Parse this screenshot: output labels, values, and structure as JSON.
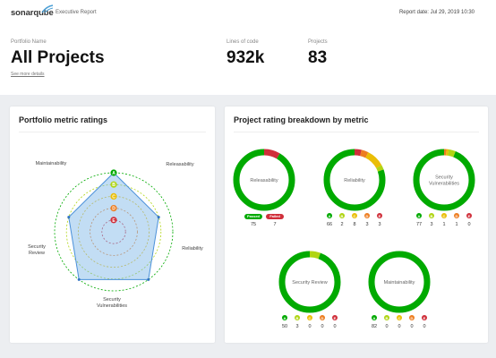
{
  "header": {
    "logo_text": "sonarqube",
    "title": "Executive Report",
    "report_date": "Report date: Jul 29, 2019 10:30"
  },
  "summary": {
    "portfolio_label": "Portfolio Name",
    "portfolio_value": "All Projects",
    "see_more": "See more details",
    "loc_label": "Lines of code",
    "loc_value": "932k",
    "projects_label": "Projects",
    "projects_value": "83"
  },
  "radar": {
    "title": "Portfolio metric ratings",
    "ring_letters": [
      "A",
      "B",
      "C",
      "D",
      "E"
    ],
    "ring_colors": [
      "#00aa00",
      "#b0d513",
      "#eabe06",
      "#ed7d20",
      "#d02f3a"
    ],
    "axes": [
      {
        "label": [
          "Maintainability"
        ],
        "rating": "A"
      },
      {
        "label": [
          "Releasability"
        ],
        "rating": "B"
      },
      {
        "label": [
          "Reliability"
        ],
        "rating": "A"
      },
      {
        "label": [
          "Security",
          "Vulnerabilities"
        ],
        "rating": "A"
      },
      {
        "label": [
          "Security",
          "Review"
        ],
        "rating": "B"
      }
    ]
  },
  "breakdown": {
    "title": "Project rating breakdown by metric",
    "donuts": [
      {
        "label": [
          "Releasability"
        ],
        "type": "passfail",
        "legend": [
          {
            "text": "Passed",
            "value": 75,
            "color": "#00aa00"
          },
          {
            "text": "Failed",
            "value": 7,
            "color": "#d02f3a"
          }
        ]
      },
      {
        "label": [
          "Reliability"
        ],
        "type": "grade",
        "legend": [
          {
            "text": "A",
            "value": 66,
            "color": "#00aa00"
          },
          {
            "text": "B",
            "value": 2,
            "color": "#b0d513"
          },
          {
            "text": "C",
            "value": 8,
            "color": "#eabe06"
          },
          {
            "text": "D",
            "value": 3,
            "color": "#ed7d20"
          },
          {
            "text": "E",
            "value": 3,
            "color": "#d02f3a"
          }
        ]
      },
      {
        "label": [
          "Security",
          "Vulnerabilities"
        ],
        "type": "grade",
        "legend": [
          {
            "text": "A",
            "value": 77,
            "color": "#00aa00"
          },
          {
            "text": "B",
            "value": 3,
            "color": "#b0d513"
          },
          {
            "text": "C",
            "value": 1,
            "color": "#eabe06"
          },
          {
            "text": "D",
            "value": 1,
            "color": "#ed7d20"
          },
          {
            "text": "E",
            "value": 0,
            "color": "#d02f3a"
          }
        ]
      },
      {
        "label": [
          "Security Review"
        ],
        "type": "grade",
        "legend": [
          {
            "text": "A",
            "value": 50,
            "color": "#00aa00"
          },
          {
            "text": "B",
            "value": 3,
            "color": "#b0d513"
          },
          {
            "text": "C",
            "value": 0,
            "color": "#eabe06"
          },
          {
            "text": "D",
            "value": 0,
            "color": "#ed7d20"
          },
          {
            "text": "E",
            "value": 0,
            "color": "#d02f3a"
          }
        ]
      },
      {
        "label": [
          "Maintainability"
        ],
        "type": "grade",
        "legend": [
          {
            "text": "A",
            "value": 82,
            "color": "#00aa00"
          },
          {
            "text": "B",
            "value": 0,
            "color": "#b0d513"
          },
          {
            "text": "C",
            "value": 0,
            "color": "#eabe06"
          },
          {
            "text": "D",
            "value": 0,
            "color": "#ed7d20"
          },
          {
            "text": "E",
            "value": 0,
            "color": "#d02f3a"
          }
        ]
      }
    ]
  }
}
